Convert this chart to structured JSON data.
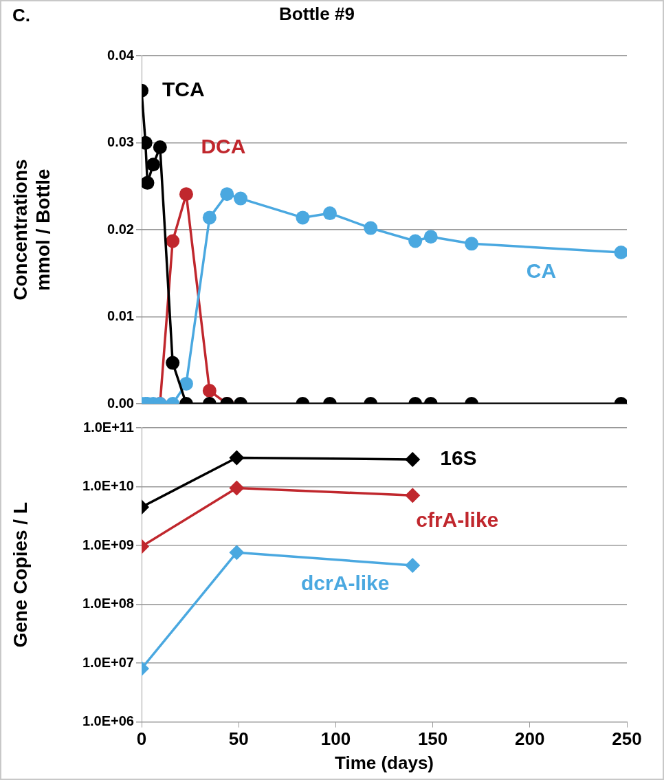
{
  "chart_data": [
    {
      "type": "line",
      "title": "Bottle #9",
      "ylabel": "Concentrations\nmmol / Bottle",
      "annotations": [
        "C."
      ],
      "marker": "circle",
      "grid": "y",
      "tick_labels": "y",
      "x": [
        0,
        2,
        3,
        6,
        9.5,
        16,
        23,
        35,
        44,
        51,
        83,
        97,
        118,
        141,
        149,
        170,
        247
      ],
      "xlim": [
        0,
        250
      ],
      "xticks": [
        0,
        50,
        100,
        150,
        200,
        250
      ],
      "ylim": [
        0,
        0.04
      ],
      "yticks": [
        {
          "value": 0,
          "label": "0.00"
        },
        0.01,
        0.02,
        0.03,
        0.04
      ],
      "series": [
        {
          "name": "TCA",
          "color": "#000000",
          "values": [
            0.036,
            0.03,
            0.0254,
            0.0275,
            0.0295,
            0.0047,
            0,
            0,
            0,
            0,
            0,
            0,
            0,
            0,
            0,
            0,
            0
          ]
        },
        {
          "name": "CA",
          "color": "#4aa8e0",
          "values": [
            0,
            0,
            0,
            0,
            0,
            0,
            0.0023,
            0.0214,
            0.0241,
            0.0236,
            0.0214,
            0.0219,
            0.0202,
            0.0187,
            0.0192,
            0.0184,
            0.0174
          ]
        },
        {
          "name": "DCA",
          "color": "#c0272d",
          "values": [
            null,
            null,
            null,
            null,
            0,
            0.0187,
            0.0241,
            0.0015,
            0,
            null,
            null,
            null,
            null,
            null,
            null,
            null,
            null
          ]
        }
      ]
    },
    {
      "type": "line",
      "ylabel": "Gene Copies / L",
      "xlabel": "Time (days)",
      "marker": "diamond",
      "grid": "y",
      "log": true,
      "x": [
        0,
        49,
        139.6
      ],
      "xlim": [
        0,
        250
      ],
      "xticks": [
        0,
        50,
        100,
        150,
        200,
        250
      ],
      "ylim": [
        1000000,
        100000000000
      ],
      "yticks": [
        {
          "value": 1000000,
          "label": "1.0E+06"
        },
        {
          "value": 10000000,
          "label": "1.0E+07"
        },
        {
          "value": 100000000,
          "label": "1.0E+08"
        },
        {
          "value": 1000000000,
          "label": "1.0E+09"
        },
        {
          "value": 10000000000,
          "label": "1.0E+10"
        },
        {
          "value": 100000000000,
          "label": "1.0E+11"
        }
      ],
      "series": [
        {
          "name": "16S",
          "color": "#000000",
          "values": [
            4500000000,
            31000000000,
            29000000000
          ]
        },
        {
          "name": "cfrA-like",
          "color": "#c0272d",
          "values": [
            960000000,
            9500000000,
            7100000000
          ]
        },
        {
          "name": "dcrA-like",
          "color": "#4aa8e0",
          "values": [
            8100000,
            760000000,
            460000000
          ]
        }
      ]
    }
  ]
}
